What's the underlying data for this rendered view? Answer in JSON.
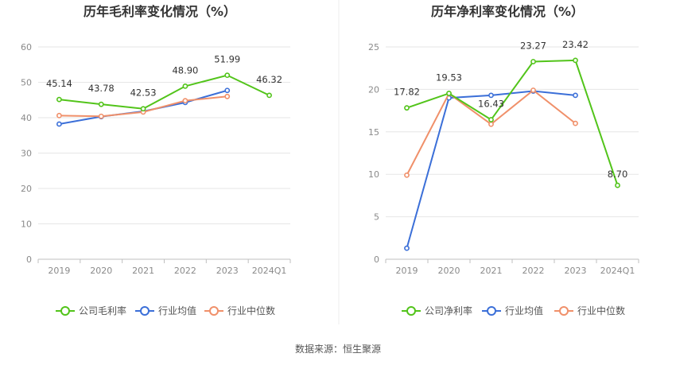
{
  "chart_data": [
    {
      "type": "line",
      "title": "历年毛利率变化情况（%）",
      "categories": [
        "2019",
        "2020",
        "2021",
        "2022",
        "2023",
        "2024Q1"
      ],
      "ylim": [
        0,
        60
      ],
      "yticks": [
        0,
        10,
        20,
        30,
        40,
        50,
        60
      ],
      "grid": true,
      "legend_position": "bottom",
      "series": [
        {
          "name": "公司毛利率",
          "color": "#52c41a",
          "values": [
            45.14,
            43.78,
            42.53,
            48.9,
            51.99,
            46.32
          ],
          "labels": [
            "45.14",
            "43.78",
            "42.53",
            "48.90",
            "51.99",
            "46.32"
          ]
        },
        {
          "name": "行业均值",
          "color": "#3b6fd8",
          "values": [
            38.2,
            40.3,
            41.8,
            44.3,
            47.7,
            null
          ]
        },
        {
          "name": "行业中位数",
          "color": "#f0906a",
          "values": [
            40.6,
            40.4,
            41.6,
            44.8,
            46.0,
            null
          ]
        }
      ]
    },
    {
      "type": "line",
      "title": "历年净利率变化情况（%）",
      "categories": [
        "2019",
        "2020",
        "2021",
        "2022",
        "2023",
        "2024Q1"
      ],
      "ylim": [
        0,
        25
      ],
      "yticks": [
        0,
        5,
        10,
        15,
        20,
        25
      ],
      "grid": true,
      "legend_position": "bottom",
      "series": [
        {
          "name": "公司净利率",
          "color": "#52c41a",
          "values": [
            17.82,
            19.53,
            16.43,
            23.27,
            23.42,
            8.7
          ],
          "labels": [
            "17.82",
            "19.53",
            "16.43",
            "23.27",
            "23.42",
            "8.70"
          ]
        },
        {
          "name": "行业均值",
          "color": "#3b6fd8",
          "values": [
            1.3,
            19.0,
            19.3,
            19.8,
            19.3,
            null
          ]
        },
        {
          "name": "行业中位数",
          "color": "#f0906a",
          "values": [
            9.9,
            19.5,
            15.9,
            19.9,
            16.0,
            null
          ]
        }
      ]
    }
  ],
  "footer": {
    "source": "数据来源：恒生聚源"
  }
}
